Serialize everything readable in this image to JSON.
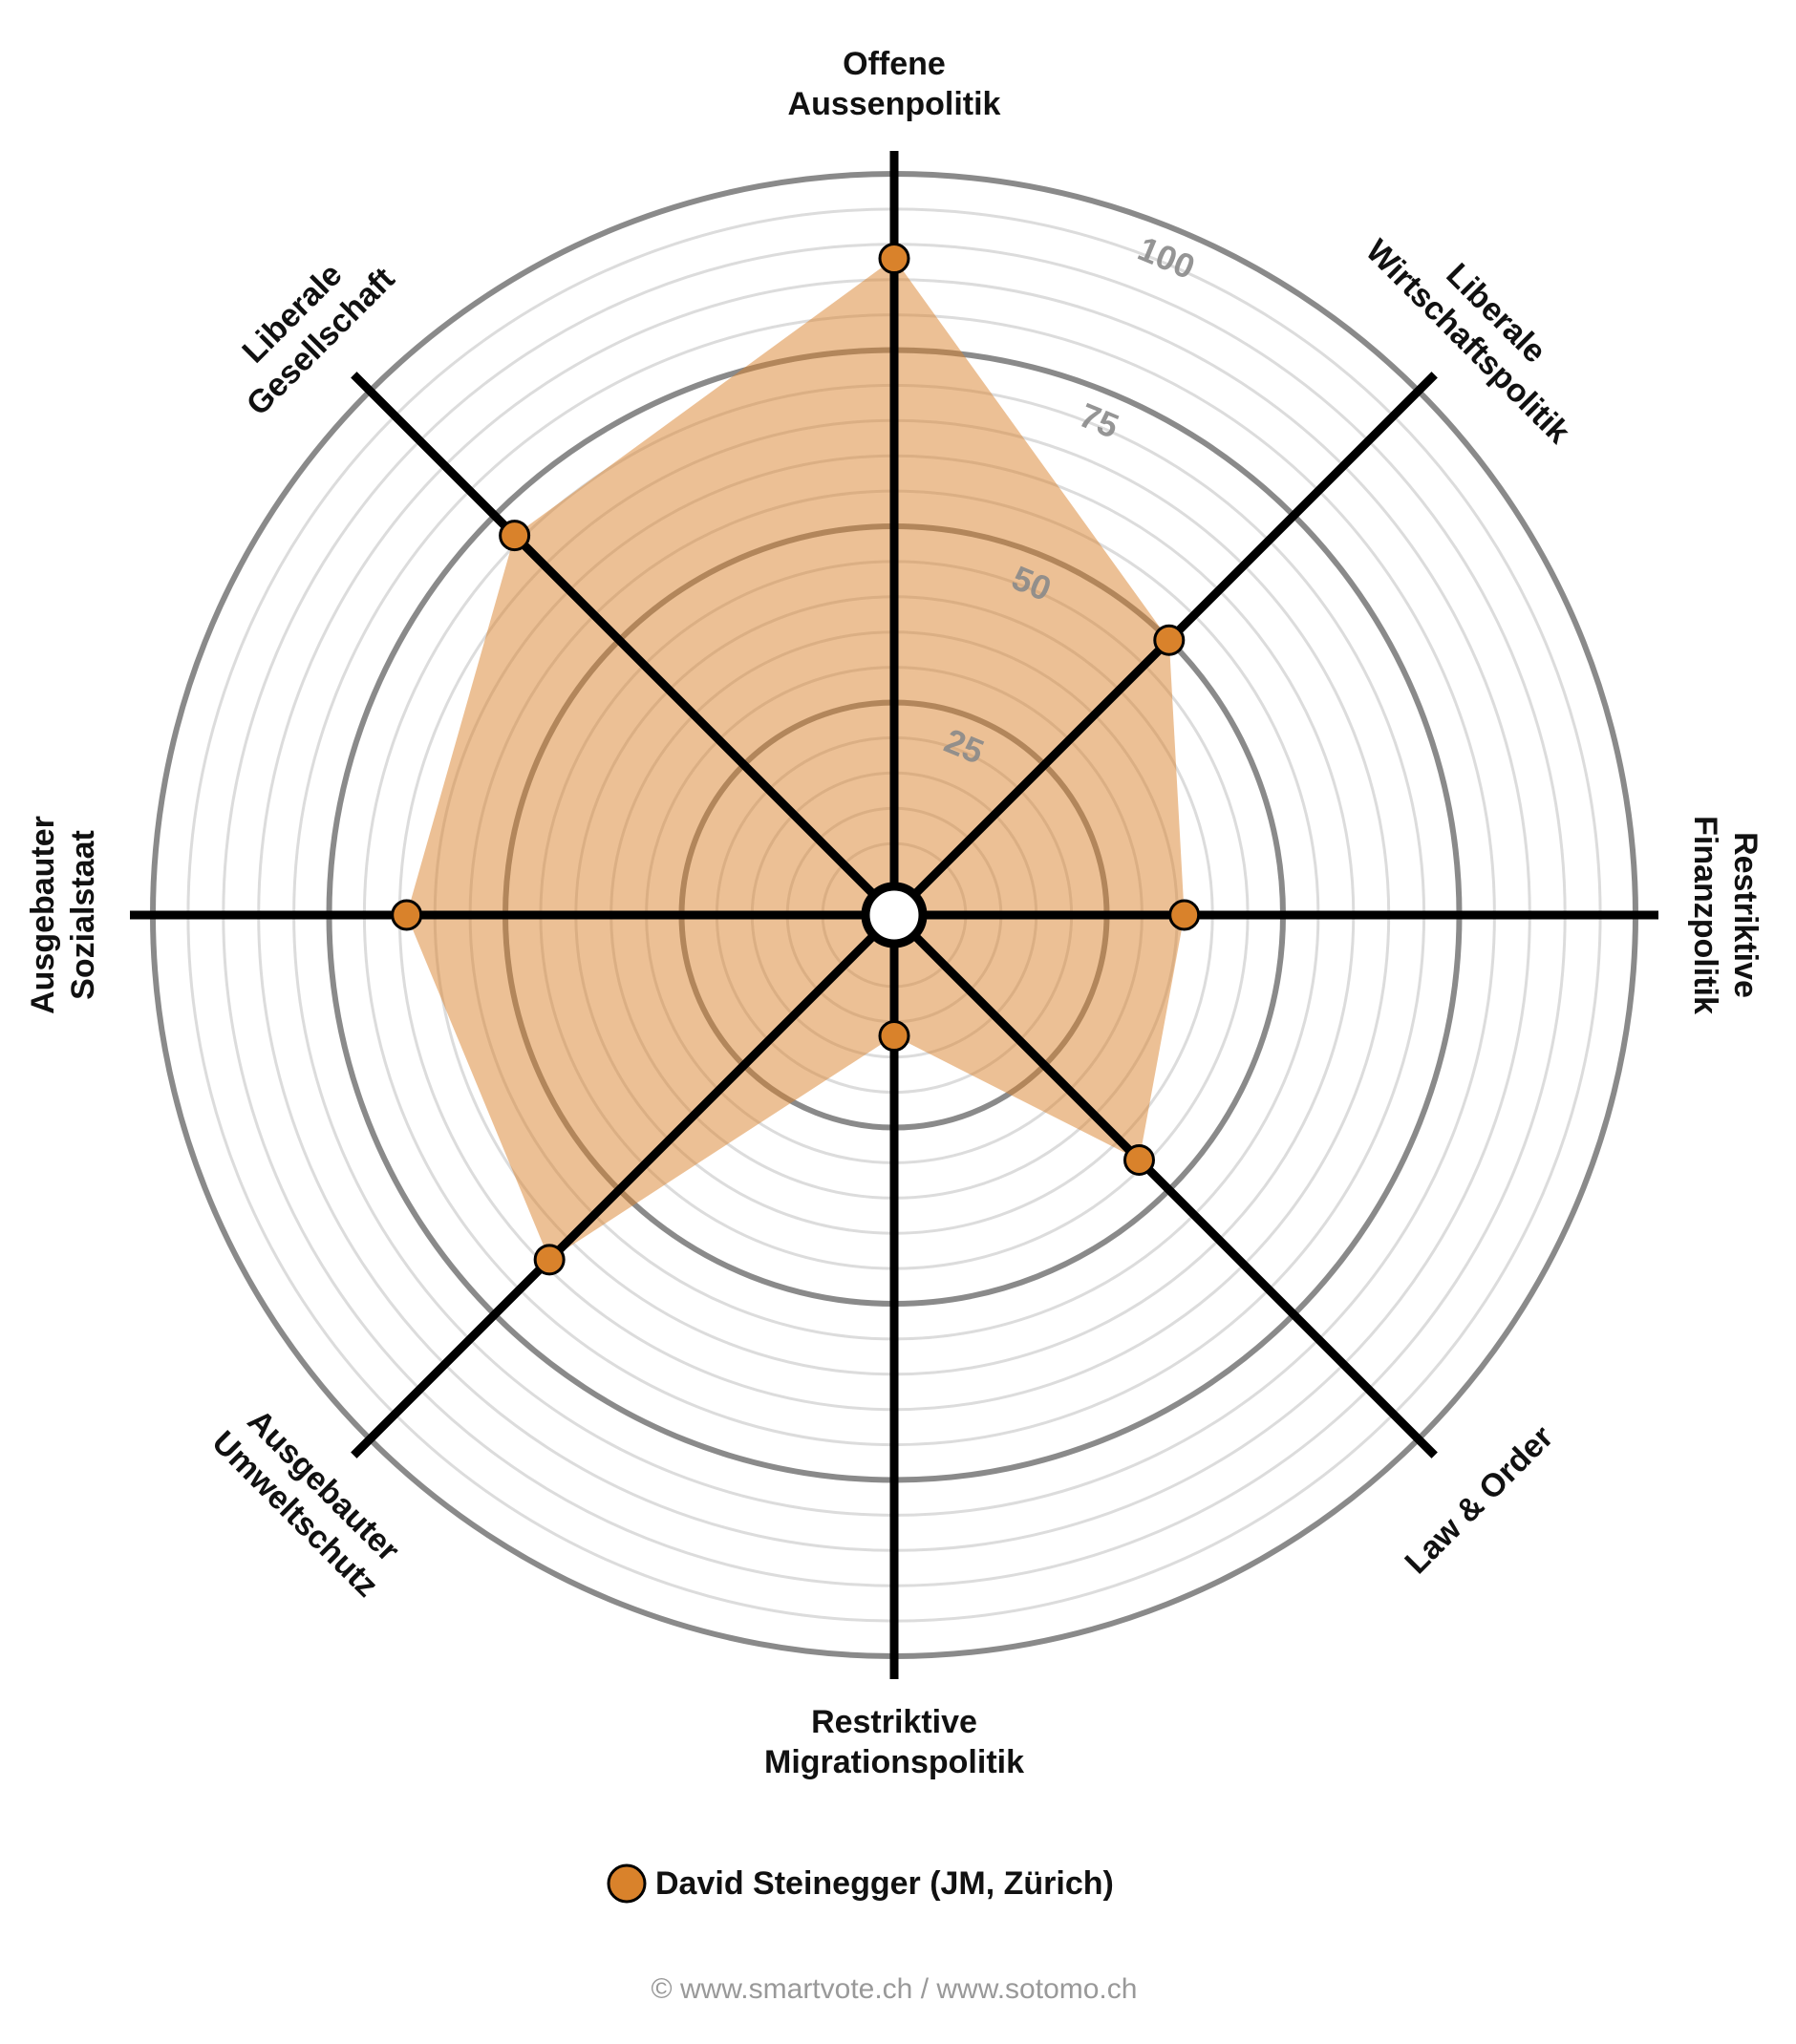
{
  "chart_data": {
    "type": "radar",
    "categories": [
      [
        "Offene",
        "Aussenpolitik"
      ],
      [
        "Liberale",
        "Wirtschaftspolitik"
      ],
      [
        "Restriktive",
        "Finanzpolitik"
      ],
      [
        "Law & Order"
      ],
      [
        "Restriktive",
        "Migrationspolitik"
      ],
      [
        "Ausgebauter",
        "Umweltschutz"
      ],
      [
        "Ausgebauter",
        "Sozialstaat"
      ],
      [
        "Liberale",
        "Gesellschaft"
      ]
    ],
    "series": [
      {
        "name": "David Steinegger (JM, Zürich)",
        "color": "#d9822b",
        "values": [
          88,
          50,
          36,
          44,
          12,
          64,
          64,
          71
        ]
      }
    ],
    "rlim": [
      0,
      100
    ],
    "rticks": [
      25,
      50,
      75,
      100
    ],
    "minor_grid": true,
    "legend": "bottom"
  },
  "footer": "© www.smartvote.ch / www.sotomo.ch"
}
